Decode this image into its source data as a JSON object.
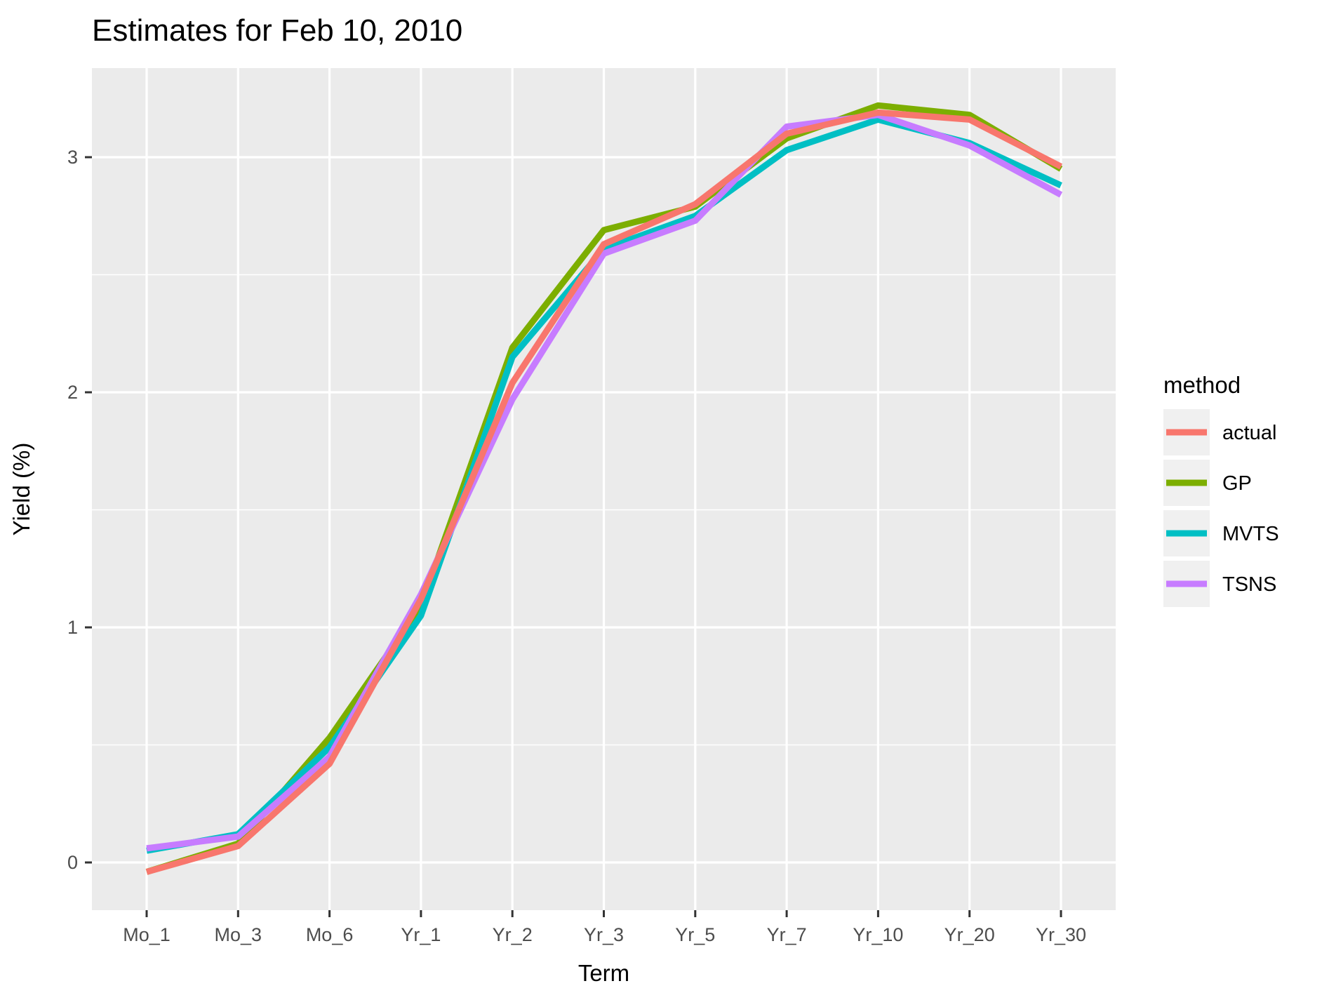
{
  "chart_data": {
    "type": "line",
    "title": "Estimates for Feb 10, 2010",
    "xlabel": "Term",
    "ylabel": "Yield (%)",
    "categories": [
      "Mo_1",
      "Mo_3",
      "Mo_6",
      "Yr_1",
      "Yr_2",
      "Yr_3",
      "Yr_5",
      "Yr_7",
      "Yr_10",
      "Yr_20",
      "Yr_30"
    ],
    "y_ticks": [
      0,
      1,
      2,
      3
    ],
    "y_minor_ticks": [
      0.5,
      1.5,
      2.5
    ],
    "ylim": [
      -0.22,
      3.38
    ],
    "grid": true,
    "legend_title": "method",
    "legend_position": "right",
    "series": [
      {
        "name": "actual",
        "color": "#F8766D",
        "values": [
          -0.04,
          0.07,
          0.42,
          1.12,
          2.04,
          2.63,
          2.8,
          3.1,
          3.19,
          3.16,
          2.96
        ]
      },
      {
        "name": "GP",
        "color": "#7CAE00",
        "values": [
          -0.04,
          0.08,
          0.53,
          1.09,
          2.19,
          2.69,
          2.79,
          3.08,
          3.22,
          3.18,
          2.95
        ]
      },
      {
        "name": "MVTS",
        "color": "#00BFC4",
        "values": [
          0.05,
          0.12,
          0.49,
          1.05,
          2.15,
          2.61,
          2.75,
          3.03,
          3.16,
          3.06,
          2.88
        ]
      },
      {
        "name": "TSNS",
        "color": "#C77CFF",
        "values": [
          0.06,
          0.11,
          0.45,
          1.14,
          1.97,
          2.59,
          2.73,
          3.13,
          3.18,
          3.05,
          2.84
        ]
      }
    ],
    "draw_order": [
      "GP",
      "MVTS",
      "TSNS",
      "actual"
    ],
    "theme": {
      "panel_background": "#EBEBEB",
      "grid_color": "#FFFFFF",
      "tick_color": "#333333",
      "axis_text_color": "#4D4D4D",
      "title_color": "#000000",
      "legend_key_background": "#F0F0F0"
    }
  }
}
